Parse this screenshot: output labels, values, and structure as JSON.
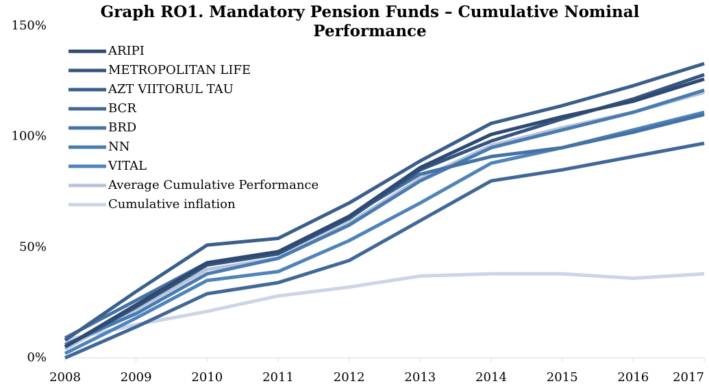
{
  "chart_data": {
    "type": "line",
    "title": "Graph RO1. Mandatory Pension Funds – Cumulative Nominal Performance",
    "categories": [
      "2008",
      "2009",
      "2010",
      "2011",
      "2012",
      "2013",
      "2014",
      "2015",
      "2016",
      "2017"
    ],
    "ylim": [
      0,
      150
    ],
    "yticks": [
      {
        "value": 0,
        "label": "0%"
      },
      {
        "value": 50,
        "label": "50%"
      },
      {
        "value": 100,
        "label": "100%"
      },
      {
        "value": 150,
        "label": "150%"
      }
    ],
    "legend": "upper left",
    "series": [
      {
        "name": "ARIPI",
        "color": "#2e4a72",
        "values": [
          5,
          24,
          43,
          48,
          64,
          86,
          101,
          109,
          116,
          126
        ]
      },
      {
        "name": "METROPOLITAN LIFE",
        "color": "#34557f",
        "values": [
          5,
          23,
          42,
          47,
          63,
          85,
          98,
          108,
          117,
          128
        ]
      },
      {
        "name": "AZT VIITORUL TAU",
        "color": "#3a5f8c",
        "values": [
          8,
          30,
          51,
          54,
          70,
          89,
          106,
          114,
          123,
          133
        ]
      },
      {
        "name": "BCR",
        "color": "#3f6899",
        "values": [
          0,
          14,
          29,
          34,
          44,
          62,
          80,
          85,
          91,
          97
        ]
      },
      {
        "name": "BRD",
        "color": "#4572a5",
        "values": [
          9,
          26,
          43,
          48,
          64,
          83,
          91,
          95,
          102,
          110
        ]
      },
      {
        "name": "NN",
        "color": "#4a7bb0",
        "values": [
          6,
          20,
          38,
          45,
          60,
          80,
          95,
          103,
          111,
          121
        ]
      },
      {
        "name": "VITAL",
        "color": "#4f83ba",
        "values": [
          2,
          18,
          35,
          39,
          53,
          70,
          88,
          95,
          103,
          111
        ]
      },
      {
        "name": "Average Cumulative Performance",
        "color": "#b8c4db",
        "values": [
          4,
          22,
          40,
          45,
          61,
          81,
          96,
          104,
          111,
          120
        ]
      },
      {
        "name": "Cumulative inflation",
        "color": "#ccd4e6",
        "values": [
          8,
          15,
          21,
          28,
          32,
          37,
          38,
          38,
          36,
          38
        ]
      }
    ]
  }
}
